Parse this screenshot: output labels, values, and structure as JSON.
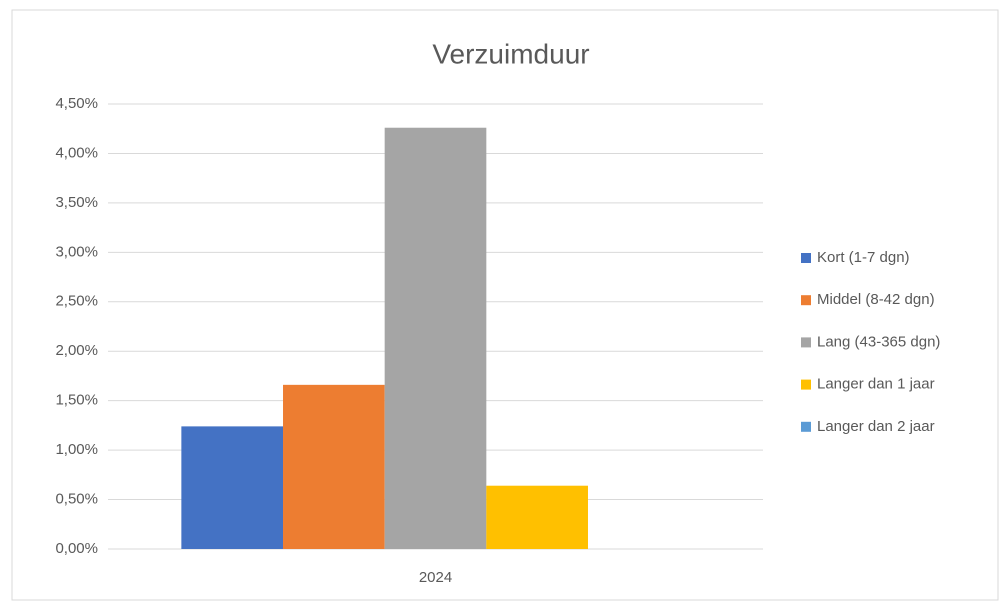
{
  "chart_data": {
    "type": "bar",
    "title": "Verzuimduur",
    "categories": [
      "2024"
    ],
    "series": [
      {
        "name": "Kort (1-7 dgn)",
        "color": "#4472c4",
        "values": [
          1.24
        ]
      },
      {
        "name": "Middel (8-42 dgn)",
        "color": "#ed7d31",
        "values": [
          1.66
        ]
      },
      {
        "name": "Lang (43-365 dgn)",
        "color": "#a5a5a5",
        "values": [
          4.26
        ]
      },
      {
        "name": "Langer dan 1 jaar",
        "color": "#ffc000",
        "values": [
          0.64
        ]
      },
      {
        "name": "Langer dan 2 jaar",
        "color": "#5b9bd5",
        "values": [
          null
        ]
      }
    ],
    "ylim": [
      0,
      4.5
    ],
    "yticks": [
      {
        "value": 0,
        "label": "0,00%"
      },
      {
        "value": 0.5,
        "label": "0,50%"
      },
      {
        "value": 1,
        "label": "1,00%"
      },
      {
        "value": 1.5,
        "label": "1,50%"
      },
      {
        "value": 2,
        "label": "2,00%"
      },
      {
        "value": 2.5,
        "label": "2,50%"
      },
      {
        "value": 3,
        "label": "3,00%"
      },
      {
        "value": 3.5,
        "label": "3,50%"
      },
      {
        "value": 4,
        "label": "4,00%"
      },
      {
        "value": 4.5,
        "label": "4,50%"
      }
    ],
    "grid": true,
    "legend": "right"
  }
}
